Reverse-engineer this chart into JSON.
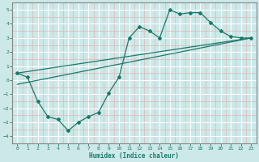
{
  "xlabel": "Humidex (Indice chaleur)",
  "xlim": [
    -0.5,
    23.5
  ],
  "ylim": [
    -4.5,
    5.5
  ],
  "xticks": [
    0,
    1,
    2,
    3,
    4,
    5,
    6,
    7,
    8,
    9,
    10,
    11,
    12,
    13,
    14,
    15,
    16,
    17,
    18,
    19,
    20,
    21,
    22,
    23
  ],
  "yticks": [
    -4,
    -3,
    -2,
    -1,
    0,
    1,
    2,
    3,
    4,
    5
  ],
  "line1_x": [
    0,
    1,
    2,
    3,
    4,
    5,
    6,
    7,
    8,
    9,
    10,
    11,
    12,
    13,
    14,
    15,
    16,
    17,
    18,
    19,
    20,
    21,
    22,
    23
  ],
  "line1_y": [
    0.5,
    0.2,
    -1.5,
    -2.6,
    -2.8,
    -3.6,
    -3.0,
    -2.6,
    -2.3,
    -0.9,
    0.2,
    3.0,
    3.8,
    3.5,
    3.0,
    5.0,
    4.7,
    4.8,
    4.8,
    4.1,
    3.5,
    3.1,
    3.0,
    3.0
  ],
  "line2_x": [
    0,
    23
  ],
  "line2_y": [
    0.5,
    3.0
  ],
  "line3_x": [
    0,
    23
  ],
  "line3_y": [
    -0.3,
    3.0
  ],
  "line_color": "#1a7a6a",
  "bg_color": "#cce8e8",
  "minor_grid_color": "#deb8b8",
  "major_grid_color": "#b8d8d8"
}
